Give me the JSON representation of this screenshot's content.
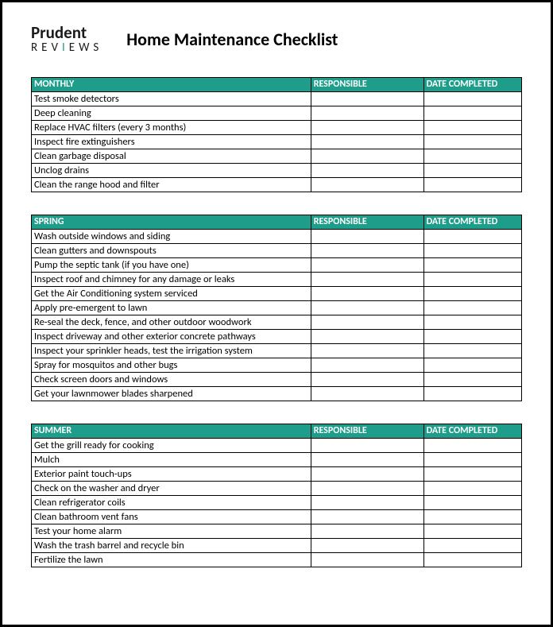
{
  "logo": {
    "line1": "Prudent",
    "line2_pre": "REV",
    "line2_accent": "I",
    "line2_post": "EWS"
  },
  "title": "Home Maintenance Checklist",
  "columns": {
    "responsible": "RESPONSIBLE",
    "date_completed": "DATE COMPLETED"
  },
  "colors": {
    "header_bg": "#1e9e8a",
    "header_text": "#ffffff",
    "border": "#000000",
    "page_border": "#000000",
    "text": "#000000",
    "logo_accent": "#1e9e8a"
  },
  "sections": [
    {
      "name": "MONTHLY",
      "tasks": [
        "Test smoke detectors",
        "Deep cleaning",
        "Replace HVAC filters (every 3 months)",
        "Inspect fire extinguishers",
        "Clean garbage disposal",
        "Unclog drains",
        "Clean the range hood and filter"
      ]
    },
    {
      "name": "SPRING",
      "tasks": [
        "Wash outside windows and siding",
        "Clean gutters and downspouts",
        "Pump the septic tank (if you have one)",
        "Inspect roof and chimney for any damage or leaks",
        "Get the Air Conditioning system serviced",
        "Apply pre-emergent to lawn",
        "Re-seal the deck, fence, and other outdoor woodwork",
        "Inspect driveway and other exterior concrete pathways",
        "Inspect your sprinkler heads, test the irrigation system",
        "Spray for mosquitos and other bugs",
        "Check screen doors and windows",
        "Get your lawnmower blades sharpened"
      ]
    },
    {
      "name": "SUMMER",
      "tasks": [
        "Get the grill ready for cooking",
        "Mulch",
        "Exterior paint touch-ups",
        "Check on the washer and dryer",
        "Clean refrigerator coils",
        "Clean bathroom vent fans",
        "Test your home alarm",
        "Wash the trash barrel and recycle bin",
        "Fertilize the lawn"
      ]
    }
  ]
}
